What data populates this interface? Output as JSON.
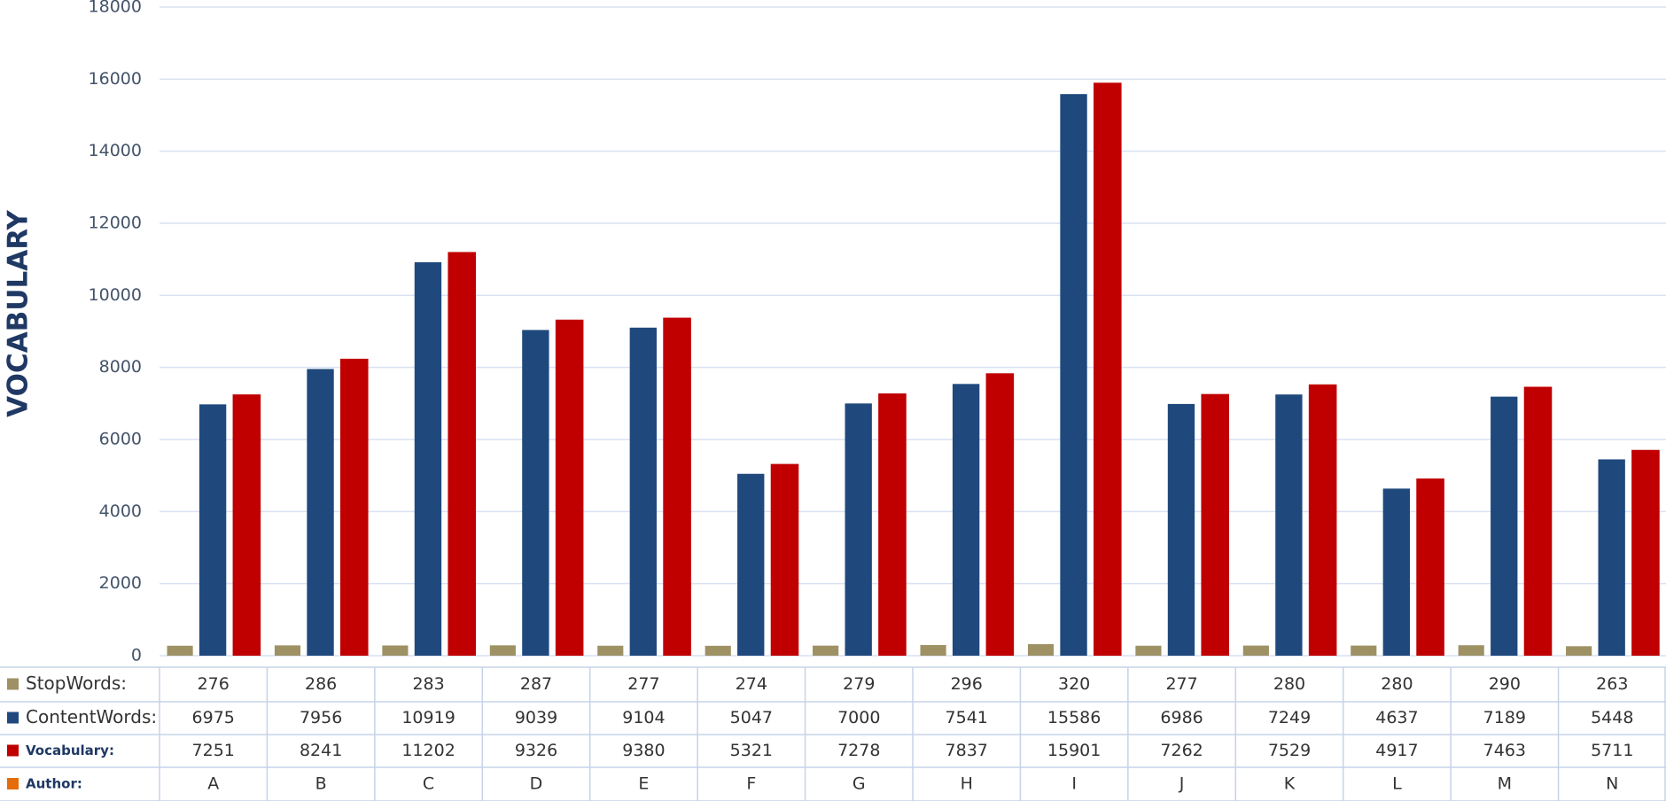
{
  "chart_data": {
    "type": "bar",
    "y_label": "VOCABULARY",
    "x_label": "Author:",
    "categories": [
      "A",
      "B",
      "C",
      "D",
      "E",
      "F",
      "G",
      "H",
      "I",
      "J",
      "K",
      "L",
      "M",
      "N"
    ],
    "series": [
      {
        "name": "StopWords:",
        "color": "#9e9164",
        "values": [
          276,
          286,
          283,
          287,
          277,
          274,
          279,
          296,
          320,
          277,
          280,
          280,
          290,
          263
        ]
      },
      {
        "name": "ContentWords:",
        "color": "#1f497d",
        "values": [
          6975,
          7956,
          10919,
          9039,
          9104,
          5047,
          7000,
          7541,
          15586,
          6986,
          7249,
          4637,
          7189,
          5448
        ]
      },
      {
        "name": "Vocabulary:",
        "color": "#c00000",
        "values": [
          7251,
          8241,
          11202,
          9326,
          9380,
          5321,
          7278,
          7837,
          15901,
          7262,
          7529,
          4917,
          7463,
          5711
        ]
      }
    ],
    "ylim": [
      0,
      18000
    ],
    "yticks": [
      0,
      2000,
      4000,
      6000,
      8000,
      10000,
      12000,
      14000,
      16000,
      18000
    ],
    "grid": true
  }
}
